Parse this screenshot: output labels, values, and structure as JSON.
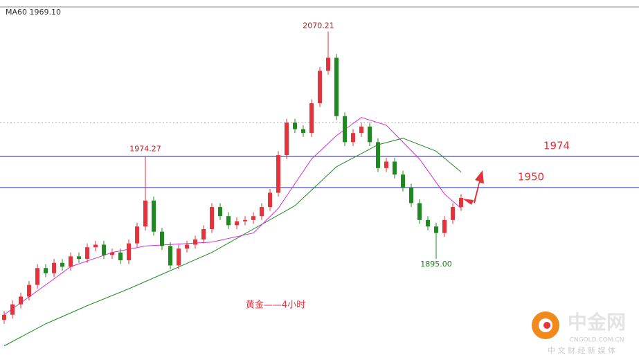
{
  "chart_data": {
    "type": "candlestick",
    "indicator_label": "MA60 1969.10",
    "annotation": "黄金——4小时",
    "low_label": "1895.00",
    "watermark": {
      "name": "中金网",
      "site": "CNGOLD.COM.CN",
      "slogan": "中 文 财 经 新 媒 体"
    },
    "ylim": [
      1815.6,
      2094.5
    ],
    "up_color": "#e5323b",
    "down_color": "#1f8a22",
    "levels": [
      1974,
      1950
    ],
    "level_color": "#1e22b4",
    "level_label_color": "#e5323b",
    "open": [
      1848,
      1852,
      1860,
      1866,
      1875,
      1888,
      1884,
      1892,
      1889,
      1897,
      1895,
      1904,
      1906,
      1898,
      1900,
      1894,
      1907,
      1920,
      1940,
      1916,
      1905,
      1890,
      1903,
      1906,
      1910,
      1918,
      1935,
      1928,
      1921,
      1924,
      1925,
      1928,
      1935,
      1946,
      1975,
      2000,
      1995,
      1992,
      2015,
      2040,
      2050,
      2005,
      1985,
      1992,
      1997,
      1985,
      1965,
      1970,
      1960,
      1950,
      1938,
      1925,
      1920,
      1915,
      1925,
      1935
    ],
    "high": [
      1855,
      1863,
      1869,
      1878,
      1891,
      1891,
      1895,
      1895,
      1900,
      1900,
      1907,
      1909,
      1909,
      1903,
      1903,
      1910,
      1923,
      1974.27,
      1943,
      1919,
      1908,
      1906,
      1909,
      1913,
      1921,
      1938,
      1938,
      1931,
      1927,
      1928,
      1931,
      1938,
      1949,
      1978,
      2003,
      2003,
      1998,
      2018,
      2043,
      2070.21,
      2053,
      2008,
      1995,
      2000,
      2000,
      1988,
      1973,
      1973,
      1963,
      1953,
      1941,
      1928,
      1923,
      1928,
      1938,
      1945
    ],
    "low": [
      1845,
      1849,
      1857,
      1863,
      1872,
      1881,
      1881,
      1886,
      1886,
      1892,
      1892,
      1901,
      1895,
      1895,
      1891,
      1891,
      1904,
      1917,
      1913,
      1902,
      1887,
      1887,
      1900,
      1903,
      1907,
      1915,
      1925,
      1918,
      1918,
      1921,
      1922,
      1925,
      1932,
      1943,
      1972,
      1992,
      1989,
      1989,
      2012,
      2037,
      2002,
      1982,
      1982,
      1989,
      1982,
      1962,
      1962,
      1957,
      1947,
      1935,
      1922,
      1917,
      1895.0,
      1912,
      1922,
      1932
    ],
    "close": [
      1852,
      1860,
      1866,
      1875,
      1888,
      1884,
      1892,
      1889,
      1897,
      1895,
      1904,
      1906,
      1898,
      1900,
      1894,
      1907,
      1920,
      1940,
      1916,
      1905,
      1890,
      1903,
      1906,
      1910,
      1918,
      1935,
      1928,
      1921,
      1924,
      1925,
      1928,
      1935,
      1946,
      1975,
      2000,
      1995,
      1992,
      2015,
      2040,
      2050,
      2005,
      1985,
      1992,
      1997,
      1985,
      1965,
      1970,
      1960,
      1950,
      1938,
      1925,
      1920,
      1915,
      1925,
      1935,
      1942
    ],
    "series": [
      {
        "color": "#1f8a22",
        "x": [
          0,
          5,
          10,
          15,
          20,
          25,
          30,
          35,
          40,
          45,
          48,
          52,
          55
        ],
        "values": [
          1828,
          1845,
          1859,
          1872,
          1886,
          1900,
          1918,
          1936,
          1966,
          1983,
          1988,
          1978,
          1962
        ]
      },
      {
        "color": "#d62bd6",
        "x": [
          0,
          5,
          8,
          13,
          17,
          25,
          30,
          33,
          37,
          40,
          43,
          46,
          50,
          53,
          55
        ],
        "values": [
          1852,
          1875,
          1889,
          1900,
          1905,
          1908,
          1915,
          1934,
          1972,
          1990,
          2004,
          1998,
          1972,
          1945,
          1934
        ]
      }
    ]
  }
}
